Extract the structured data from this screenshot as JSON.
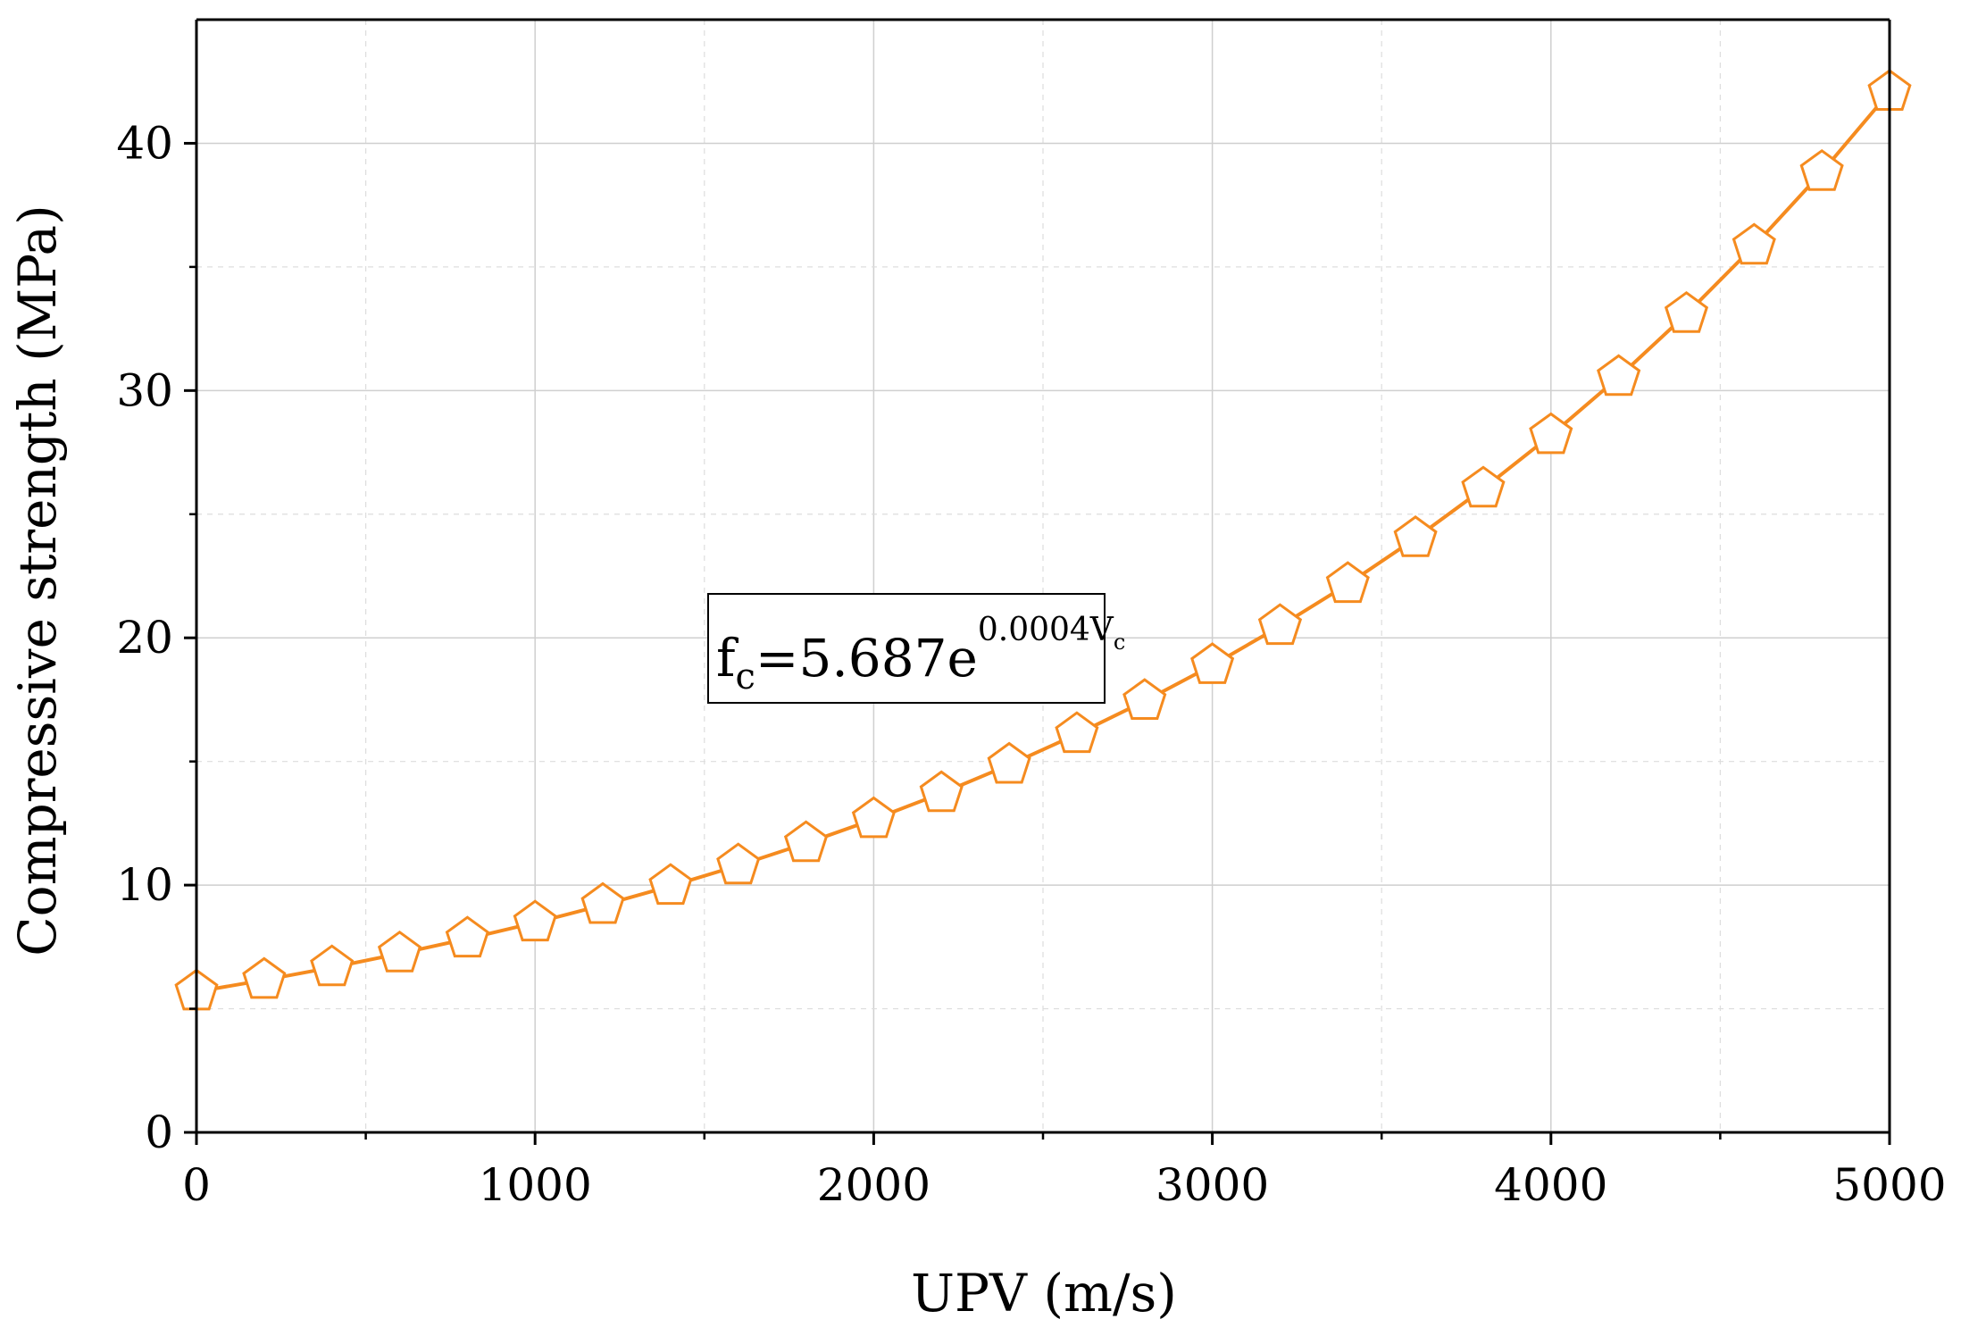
{
  "chart_data": {
    "type": "line",
    "title": "",
    "xlabel": "UPV (m/s)",
    "ylabel": "Compressive strength (MPa)",
    "xlim": [
      0,
      5000
    ],
    "ylim": [
      0,
      45
    ],
    "x_ticks": [
      0,
      1000,
      2000,
      3000,
      4000,
      5000
    ],
    "y_ticks": [
      0,
      10,
      20,
      30,
      40
    ],
    "grid": true,
    "series": [
      {
        "name": "fc",
        "color": "#f58b1f",
        "marker": "pentagon",
        "x": [
          0,
          200,
          400,
          600,
          800,
          1000,
          1200,
          1400,
          1600,
          1800,
          2000,
          2200,
          2400,
          2600,
          2800,
          3000,
          3200,
          3400,
          3600,
          3800,
          4000,
          4200,
          4400,
          4600,
          4800,
          5000
        ],
        "y": [
          5.69,
          6.16,
          6.67,
          7.23,
          7.83,
          8.48,
          9.19,
          9.96,
          10.79,
          11.69,
          12.66,
          13.71,
          14.86,
          16.1,
          17.44,
          18.89,
          20.47,
          22.17,
          24.02,
          26.03,
          28.19,
          30.54,
          33.09,
          35.85,
          38.83,
          42.07
        ]
      }
    ],
    "annotation": {
      "base": "f",
      "base_sub": "c",
      "mid": "=5.687e",
      "exp": "0.0004V",
      "exp_sub": "c"
    }
  }
}
